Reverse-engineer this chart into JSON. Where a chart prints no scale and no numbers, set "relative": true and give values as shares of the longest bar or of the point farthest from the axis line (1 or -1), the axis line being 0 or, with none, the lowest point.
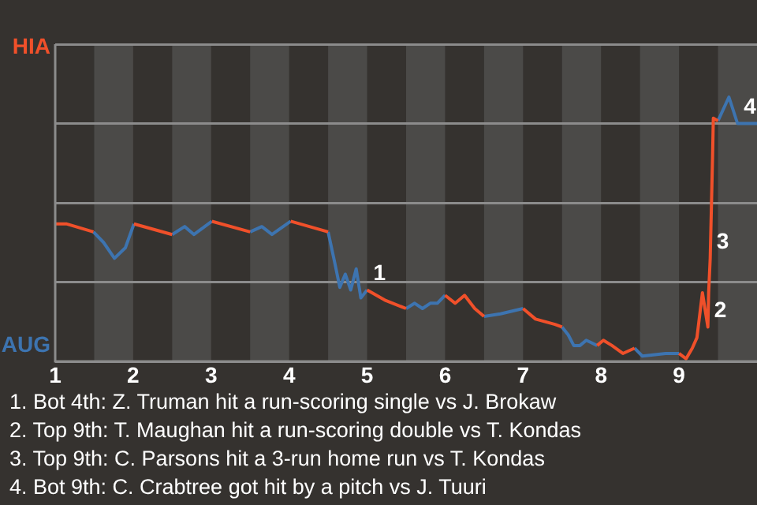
{
  "chart_data": {
    "type": "line",
    "relative": true,
    "series": [
      {
        "name": "HIA",
        "color": "#f0502a",
        "x": [
          1.0,
          1.15,
          1.49,
          1.75,
          2.01,
          2.5,
          2.8,
          3.01,
          3.5,
          3.75,
          4.02,
          4.5,
          4.75,
          5.0,
          5.24,
          5.5,
          5.75,
          6.0,
          6.13,
          6.25,
          6.38,
          6.5,
          6.6,
          7.0,
          7.16,
          7.41,
          7.5,
          7.7,
          7.95,
          8.03,
          8.14,
          8.28,
          8.43,
          8.7,
          9.0,
          9.09,
          9.17,
          9.23,
          9.3,
          9.37,
          9.38,
          9.4,
          9.43,
          9.44,
          9.5
        ],
        "values": [
          0.52,
          0.52,
          0.49,
          null,
          0.52,
          0.48,
          null,
          0.53,
          0.49,
          null,
          0.53,
          0.49,
          null,
          0.27,
          0.23,
          0.2,
          null,
          0.25,
          0.22,
          0.25,
          0.2,
          0.17,
          null,
          0.2,
          0.16,
          0.14,
          0.13,
          null,
          0.06,
          0.08,
          0.06,
          0.03,
          0.05,
          null,
          0.03,
          0.01,
          0.05,
          0.09,
          0.26,
          0.13,
          0.26,
          0.39,
          0.77,
          0.92,
          0.91
        ]
      },
      {
        "name": "AUG",
        "color": "#3d74b0",
        "x": [
          1.49,
          1.62,
          1.76,
          1.9,
          2.01,
          2.25,
          2.5,
          2.66,
          2.78,
          3.01,
          3.25,
          3.5,
          3.65,
          3.78,
          4.02,
          4.25,
          4.5,
          4.58,
          4.65,
          4.72,
          4.79,
          4.86,
          4.92,
          5.0,
          5.1,
          5.5,
          5.61,
          5.71,
          5.81,
          5.9,
          6.0,
          6.45,
          6.5,
          6.71,
          7.0,
          7.3,
          7.5,
          7.58,
          7.65,
          7.73,
          7.81,
          7.88,
          7.95,
          8.2,
          8.43,
          8.53,
          8.83,
          9.0,
          9.47,
          9.5,
          9.64,
          9.75,
          10.0
        ],
        "values": [
          0.49,
          0.45,
          0.39,
          0.43,
          0.52,
          null,
          0.48,
          0.51,
          0.48,
          0.53,
          null,
          0.49,
          0.51,
          0.48,
          0.53,
          null,
          0.49,
          0.38,
          0.28,
          0.33,
          0.27,
          0.35,
          0.24,
          0.27,
          null,
          0.2,
          0.22,
          0.2,
          0.22,
          0.22,
          0.25,
          null,
          0.17,
          0.18,
          0.2,
          null,
          0.13,
          0.1,
          0.06,
          0.06,
          0.08,
          0.07,
          0.06,
          null,
          0.05,
          0.02,
          0.03,
          0.03,
          null,
          0.91,
          1,
          0.9,
          0.9
        ]
      }
    ],
    "xlim": [
      1,
      10
    ],
    "xticks": [
      1,
      2,
      3,
      4,
      5,
      6,
      7,
      8,
      9
    ],
    "grid": "y",
    "bands": [
      {
        "axis": "x",
        "from": 1.5,
        "to": 2,
        "color": "#4b4a48"
      },
      {
        "axis": "x",
        "from": 2.5,
        "to": 3,
        "color": "#4b4a48"
      },
      {
        "axis": "x",
        "from": 3.5,
        "to": 4,
        "color": "#4b4a48"
      },
      {
        "axis": "x",
        "from": 4.5,
        "to": 5,
        "color": "#4b4a48"
      },
      {
        "axis": "x",
        "from": 5.5,
        "to": 6,
        "color": "#4b4a48"
      },
      {
        "axis": "x",
        "from": 6.5,
        "to": 7,
        "color": "#4b4a48"
      },
      {
        "axis": "x",
        "from": 7.5,
        "to": 8,
        "color": "#4b4a48"
      },
      {
        "axis": "x",
        "from": 8.5,
        "to": 9,
        "color": "#4b4a48"
      },
      {
        "axis": "x",
        "from": 9.5,
        "to": 10,
        "color": "#4b4a48"
      }
    ],
    "annotations": [
      {
        "text": "1",
        "x": 5.0,
        "y": 0.27
      },
      {
        "text": "2",
        "x": 9.37,
        "y": 0.13
      },
      {
        "text": "3",
        "x": 9.4,
        "y": 0.39
      },
      {
        "text": "4",
        "x": 9.75,
        "y": 0.9
      },
      "1. Bot 4th: Z. Truman hit a run-scoring single vs J. Brokaw",
      "2. Top 9th: T. Maughan hit a run-scoring double vs T. Kondas",
      "3. Top 9th: C. Parsons hit a 3-run home run vs T. Kondas",
      "4. Bot 9th: C. Crabtree got hit by a pitch vs J. Tuuri"
    ]
  }
}
